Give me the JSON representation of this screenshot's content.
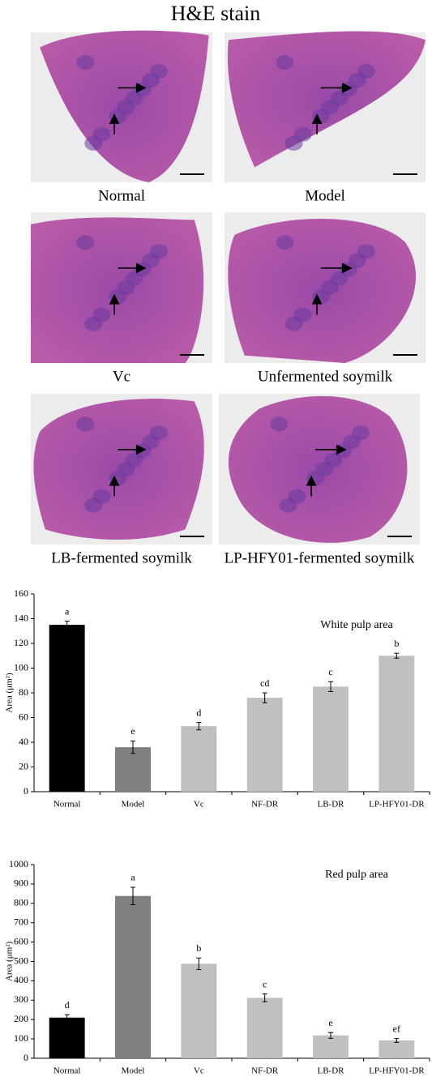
{
  "figure": {
    "title": "H&E stain",
    "panels": [
      {
        "label": "Normal"
      },
      {
        "label": "Model"
      },
      {
        "label": "Vc"
      },
      {
        "label": "Unfermented soymilk"
      },
      {
        "label": "LB-fermented soymilk"
      },
      {
        "label": "LP-HFY01-fermented soymilk"
      }
    ]
  },
  "chart_data": [
    {
      "type": "bar",
      "title": "White pulp area",
      "y_label": "Area (μm²)",
      "categories": [
        "Normal",
        "Model",
        "Vc",
        "NF-DR",
        "LB-DR",
        "LP-HFY01-DR"
      ],
      "values": [
        135,
        36,
        53,
        76,
        85,
        110
      ],
      "errors": [
        3,
        5,
        3,
        4,
        4,
        2
      ],
      "significance": [
        "a",
        "e",
        "d",
        "cd",
        "c",
        "b"
      ],
      "colors": [
        "#000000",
        "#808080",
        "#c0c0c0",
        "#c0c0c0",
        "#c0c0c0",
        "#c0c0c0"
      ],
      "ylim": [
        0,
        160
      ],
      "yticks": [
        0,
        20,
        40,
        60,
        80,
        100,
        120,
        140,
        160
      ]
    },
    {
      "type": "bar",
      "title": "Red pulp area",
      "y_label": "Area (μm²)",
      "categories": [
        "Normal",
        "Model",
        "Vc",
        "NF-DR",
        "LB-DR",
        "LP-HFY01-DR"
      ],
      "values": [
        210,
        838,
        488,
        312,
        118,
        92
      ],
      "errors": [
        15,
        45,
        30,
        20,
        15,
        10
      ],
      "significance": [
        "d",
        "a",
        "b",
        "c",
        "e",
        "ef"
      ],
      "colors": [
        "#000000",
        "#808080",
        "#c0c0c0",
        "#c0c0c0",
        "#c0c0c0",
        "#c0c0c0"
      ],
      "ylim": [
        0,
        1000
      ],
      "yticks": [
        0,
        100,
        200,
        300,
        400,
        500,
        600,
        700,
        800,
        900,
        1000
      ]
    }
  ]
}
